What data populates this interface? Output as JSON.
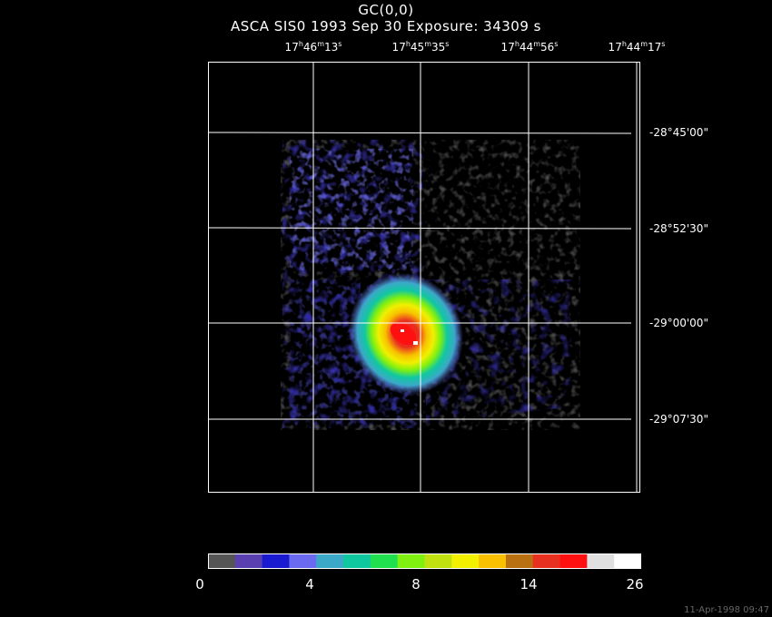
{
  "header": {
    "title": "GC(0,0)",
    "subtitle": "ASCA SIS0    1993 Sep 30    Exposure: 34309 s"
  },
  "axes": {
    "ra_ticks": [
      {
        "h": "17",
        "m": "46",
        "s": "13"
      },
      {
        "h": "17",
        "m": "45",
        "s": "35"
      },
      {
        "h": "17",
        "m": "44",
        "s": "56"
      },
      {
        "h": "17",
        "m": "44",
        "s": "17"
      }
    ],
    "dec_ticks": [
      "-28°45'00\"",
      "-28°52'30\"",
      "-29°00'00\"",
      "-29°07'30\""
    ]
  },
  "colorbar": {
    "colors": [
      "#555555",
      "#5a3fb0",
      "#1a1ad0",
      "#6a6af0",
      "#3ca8c8",
      "#10c8a0",
      "#20e050",
      "#80f010",
      "#c0e010",
      "#f0f000",
      "#f8c000",
      "#b87010",
      "#e83020",
      "#ff1010",
      "#e0e0e0",
      "#ffffff"
    ],
    "labels": [
      "0",
      "4",
      "8",
      "14",
      "26"
    ]
  },
  "footer": {
    "timestamp": "11-Apr-1998 09:47"
  }
}
